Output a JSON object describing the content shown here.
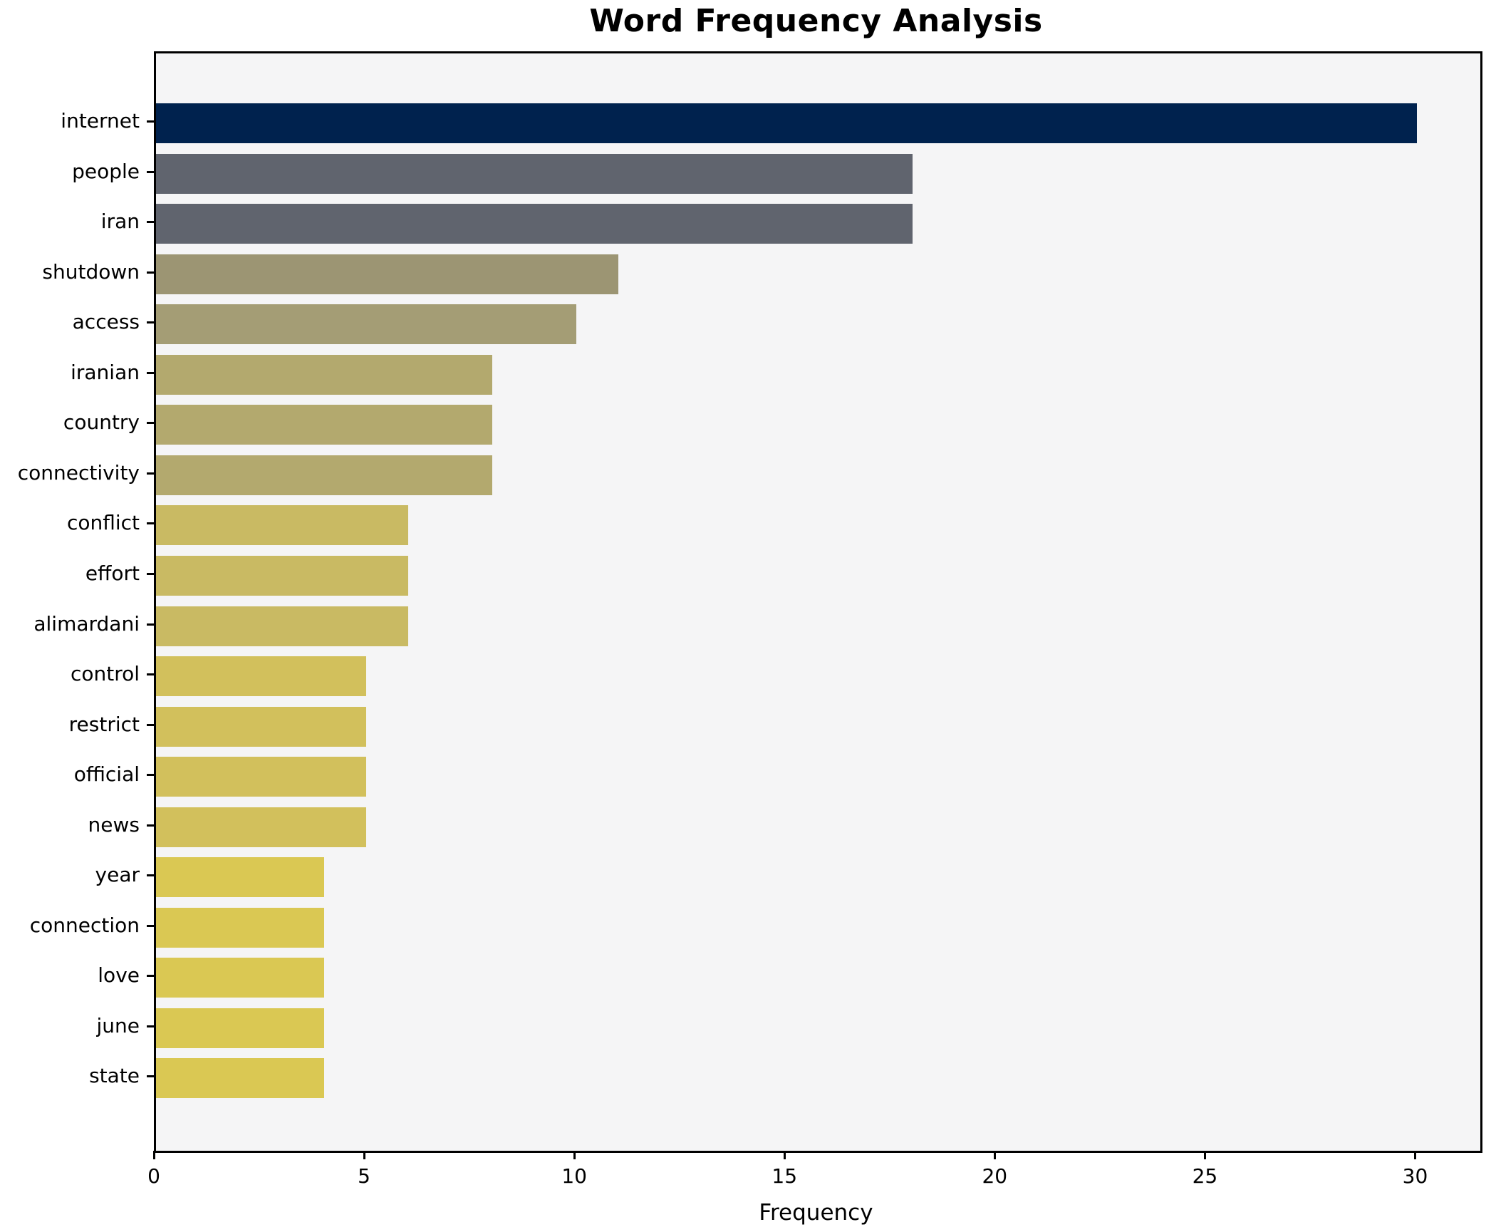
{
  "chart_data": {
    "type": "bar",
    "orientation": "horizontal",
    "title": "Word Frequency Analysis",
    "xlabel": "Frequency",
    "ylabel": "",
    "categories": [
      "internet",
      "people",
      "iran",
      "shutdown",
      "access",
      "iranian",
      "country",
      "connectivity",
      "conflict",
      "effort",
      "alimardani",
      "control",
      "restrict",
      "official",
      "news",
      "year",
      "connection",
      "love",
      "june",
      "state"
    ],
    "values": [
      30,
      18,
      18,
      11,
      10,
      8,
      8,
      8,
      6,
      6,
      6,
      5,
      5,
      5,
      5,
      4,
      4,
      4,
      4,
      4
    ],
    "bar_colors": [
      "#00224e",
      "#60646e",
      "#60646e",
      "#9c9573",
      "#a49d75",
      "#b3a96e",
      "#b3a96e",
      "#b3a96e",
      "#c9ba63",
      "#c9ba63",
      "#c9ba63",
      "#d2c05c",
      "#d2c05c",
      "#d2c05c",
      "#d2c05c",
      "#dac853",
      "#dac853",
      "#dac853",
      "#dac853",
      "#dac853"
    ],
    "xlim": [
      0,
      31.5
    ],
    "xticks": [
      0,
      5,
      10,
      15,
      20,
      25,
      30
    ],
    "grid": false,
    "legend_position": "none",
    "plot_background": "#f5f5f6",
    "figure_background": "#ffffff",
    "spine_color": "#000000"
  }
}
